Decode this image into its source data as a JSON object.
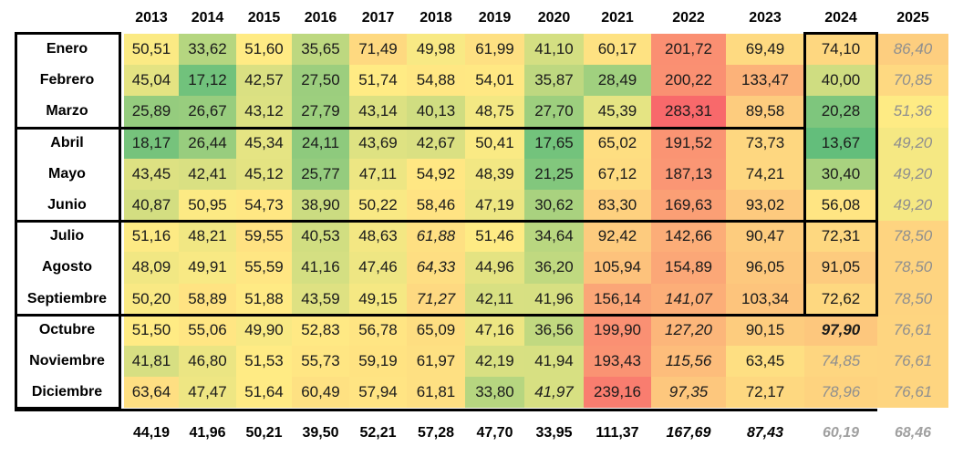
{
  "years": [
    "2013",
    "2014",
    "2015",
    "2016",
    "2017",
    "2018",
    "2019",
    "2020",
    "2021",
    "2022",
    "2023",
    "2024",
    "2025"
  ],
  "rows": [
    {
      "month": "Enero",
      "values": [
        "50,51",
        "33,62",
        "51,60",
        "35,65",
        "71,49",
        "49,98",
        "61,99",
        "41,10",
        "60,17",
        "201,72",
        "69,49",
        "74,10",
        "86,40"
      ],
      "styles": [
        "",
        "",
        "",
        "",
        "",
        "",
        "",
        "",
        "",
        "",
        "",
        "",
        "p"
      ]
    },
    {
      "month": "Febrero",
      "values": [
        "45,04",
        "17,12",
        "42,57",
        "27,50",
        "51,74",
        "54,88",
        "54,01",
        "35,87",
        "28,49",
        "200,22",
        "133,47",
        "40,00",
        "70,85"
      ],
      "styles": [
        "",
        "",
        "",
        "",
        "",
        "",
        "",
        "",
        "",
        "",
        "",
        "",
        "p"
      ]
    },
    {
      "month": "Marzo",
      "values": [
        "25,89",
        "26,67",
        "43,12",
        "27,79",
        "43,14",
        "40,13",
        "48,75",
        "27,70",
        "45,39",
        "283,31",
        "89,58",
        "20,28",
        "51,36"
      ],
      "styles": [
        "",
        "",
        "",
        "",
        "",
        "",
        "",
        "",
        "",
        "",
        "",
        "",
        "p"
      ]
    },
    {
      "month": "Abril",
      "values": [
        "18,17",
        "26,44",
        "45,34",
        "24,11",
        "43,69",
        "42,67",
        "50,41",
        "17,65",
        "65,02",
        "191,52",
        "73,73",
        "13,67",
        "49,20"
      ],
      "styles": [
        "",
        "",
        "",
        "",
        "",
        "",
        "",
        "",
        "",
        "",
        "",
        "",
        "p"
      ]
    },
    {
      "month": "Mayo",
      "values": [
        "43,45",
        "42,41",
        "45,12",
        "25,77",
        "47,11",
        "54,92",
        "48,39",
        "21,25",
        "67,12",
        "187,13",
        "74,21",
        "30,40",
        "49,20"
      ],
      "styles": [
        "",
        "",
        "",
        "",
        "",
        "",
        "",
        "",
        "",
        "",
        "",
        "",
        "p"
      ]
    },
    {
      "month": "Junio",
      "values": [
        "40,87",
        "50,95",
        "54,73",
        "38,90",
        "50,22",
        "58,46",
        "47,19",
        "30,62",
        "83,30",
        "169,63",
        "93,02",
        "56,08",
        "49,20"
      ],
      "styles": [
        "",
        "",
        "",
        "",
        "",
        "",
        "",
        "",
        "",
        "",
        "",
        "",
        "p"
      ]
    },
    {
      "month": "Julio",
      "values": [
        "51,16",
        "48,21",
        "59,55",
        "40,53",
        "48,63",
        "61,88",
        "51,46",
        "34,64",
        "92,42",
        "142,66",
        "90,47",
        "72,31",
        "78,50"
      ],
      "styles": [
        "",
        "",
        "",
        "",
        "",
        "i",
        "",
        "",
        "",
        "",
        "",
        "",
        "p"
      ]
    },
    {
      "month": "Agosto",
      "values": [
        "48,09",
        "49,91",
        "55,59",
        "41,16",
        "47,46",
        "64,33",
        "44,96",
        "36,20",
        "105,94",
        "154,89",
        "96,05",
        "91,05",
        "78,50"
      ],
      "styles": [
        "",
        "",
        "",
        "",
        "",
        "i",
        "",
        "",
        "",
        "",
        "",
        "",
        "p"
      ]
    },
    {
      "month": "Septiembre",
      "values": [
        "50,20",
        "58,89",
        "51,88",
        "43,59",
        "49,15",
        "71,27",
        "42,11",
        "41,96",
        "156,14",
        "141,07",
        "103,34",
        "72,62",
        "78,50"
      ],
      "styles": [
        "",
        "",
        "",
        "",
        "",
        "i",
        "",
        "",
        "",
        "i",
        "",
        "",
        "p"
      ]
    },
    {
      "month": "Octubre",
      "values": [
        "51,50",
        "55,06",
        "49,90",
        "52,83",
        "56,78",
        "65,09",
        "47,16",
        "36,56",
        "199,90",
        "127,20",
        "90,15",
        "97,90",
        "76,61"
      ],
      "styles": [
        "",
        "",
        "",
        "",
        "",
        "",
        "",
        "",
        "",
        "i",
        "",
        "bi",
        "p"
      ]
    },
    {
      "month": "Noviembre",
      "values": [
        "41,81",
        "46,80",
        "51,53",
        "55,73",
        "59,19",
        "61,97",
        "42,19",
        "41,94",
        "193,43",
        "115,56",
        "63,45",
        "74,85",
        "76,61"
      ],
      "styles": [
        "",
        "",
        "",
        "",
        "",
        "",
        "",
        "",
        "",
        "i",
        "",
        "p",
        "p"
      ]
    },
    {
      "month": "Diciembre",
      "values": [
        "63,64",
        "47,47",
        "51,64",
        "60,49",
        "57,94",
        "61,81",
        "33,80",
        "41,97",
        "239,16",
        "97,35",
        "72,17",
        "78,96",
        "76,61"
      ],
      "styles": [
        "",
        "",
        "",
        "",
        "",
        "",
        "",
        "i",
        "",
        "i",
        "",
        "p",
        "p"
      ]
    }
  ],
  "totals": [
    "44,19",
    "41,96",
    "50,21",
    "39,50",
    "52,21",
    "57,28",
    "47,70",
    "33,95",
    "111,37",
    "167,69",
    "87,43",
    "60,19",
    "68,46"
  ],
  "totals_styles": [
    "",
    "",
    "",
    "",
    "",
    "",
    "",
    "",
    "",
    "i",
    "i",
    "g",
    "g"
  ],
  "scale_colors": {
    "low": "#63be7b",
    "mid": "#ffeb84",
    "high": "#f8696b"
  }
}
